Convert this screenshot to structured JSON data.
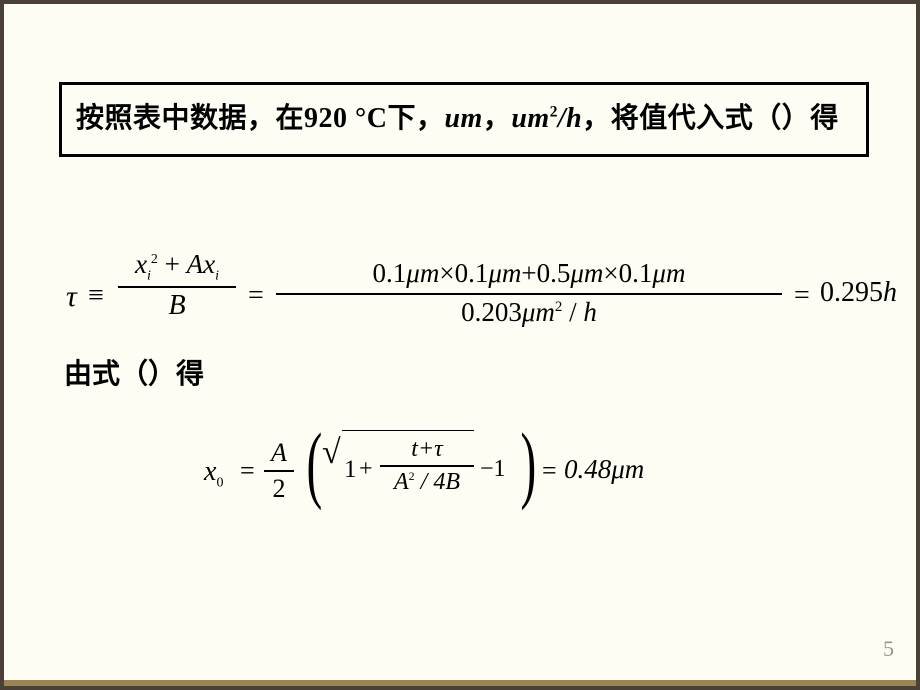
{
  "page": {
    "number": "5"
  },
  "colors": {
    "background": "#fdfdf3",
    "frame": "#4a4035",
    "border_bottom": "#9a8652",
    "text": "#000000",
    "pagenum": "#9d9282",
    "box_border": "#000000"
  },
  "topbox": {
    "pre": "按照表中数据，在",
    "val1": "920 ",
    "deg": "°C",
    "post1": "下，",
    "unit1": "um",
    "sep": "，",
    "unit2_a": "um",
    "unit2_sup": "2",
    "unit2_b": "/h",
    "post2": "，将值代入式",
    "paren": "（）",
    "post3": "得"
  },
  "eq1": {
    "tau": "τ",
    "equiv": "≡",
    "frac1_num_x": "x",
    "frac1_num_i": "i",
    "frac1_num_sup": "2",
    "frac1_num_plus": " + ",
    "frac1_num_A": "A",
    "frac1_num_x2": "x",
    "frac1_num_i2": "i",
    "frac1_den": "B",
    "eq": "=",
    "num_text": "0.1μm × 0.1μm + 0.5μm × 0.1μm",
    "num_a": "0.1",
    "mu": "μm",
    "times": "×",
    "num_b": "0.1",
    "plus": "+",
    "num_c": "0.5",
    "num_d": "0.1",
    "den_a": "0.203",
    "den_sup": "2",
    "den_slash": " / ",
    "den_h": "h",
    "result_val": "0.295",
    "result_h": "h"
  },
  "mid": {
    "t1": "由式",
    "paren": "（）",
    "t2": "得"
  },
  "eq2": {
    "x": "x",
    "sub0": "0",
    "eq": "=",
    "A": "A",
    "two": "2",
    "sqrt": "√",
    "one": "1",
    "plus": "+",
    "t": "t",
    "tau": "τ",
    "A2": "A",
    "sup2": "2",
    "slash4": " / 4",
    "B": "B",
    "minus1": "−1",
    "result_val": "0.48",
    "mu": "μm"
  }
}
